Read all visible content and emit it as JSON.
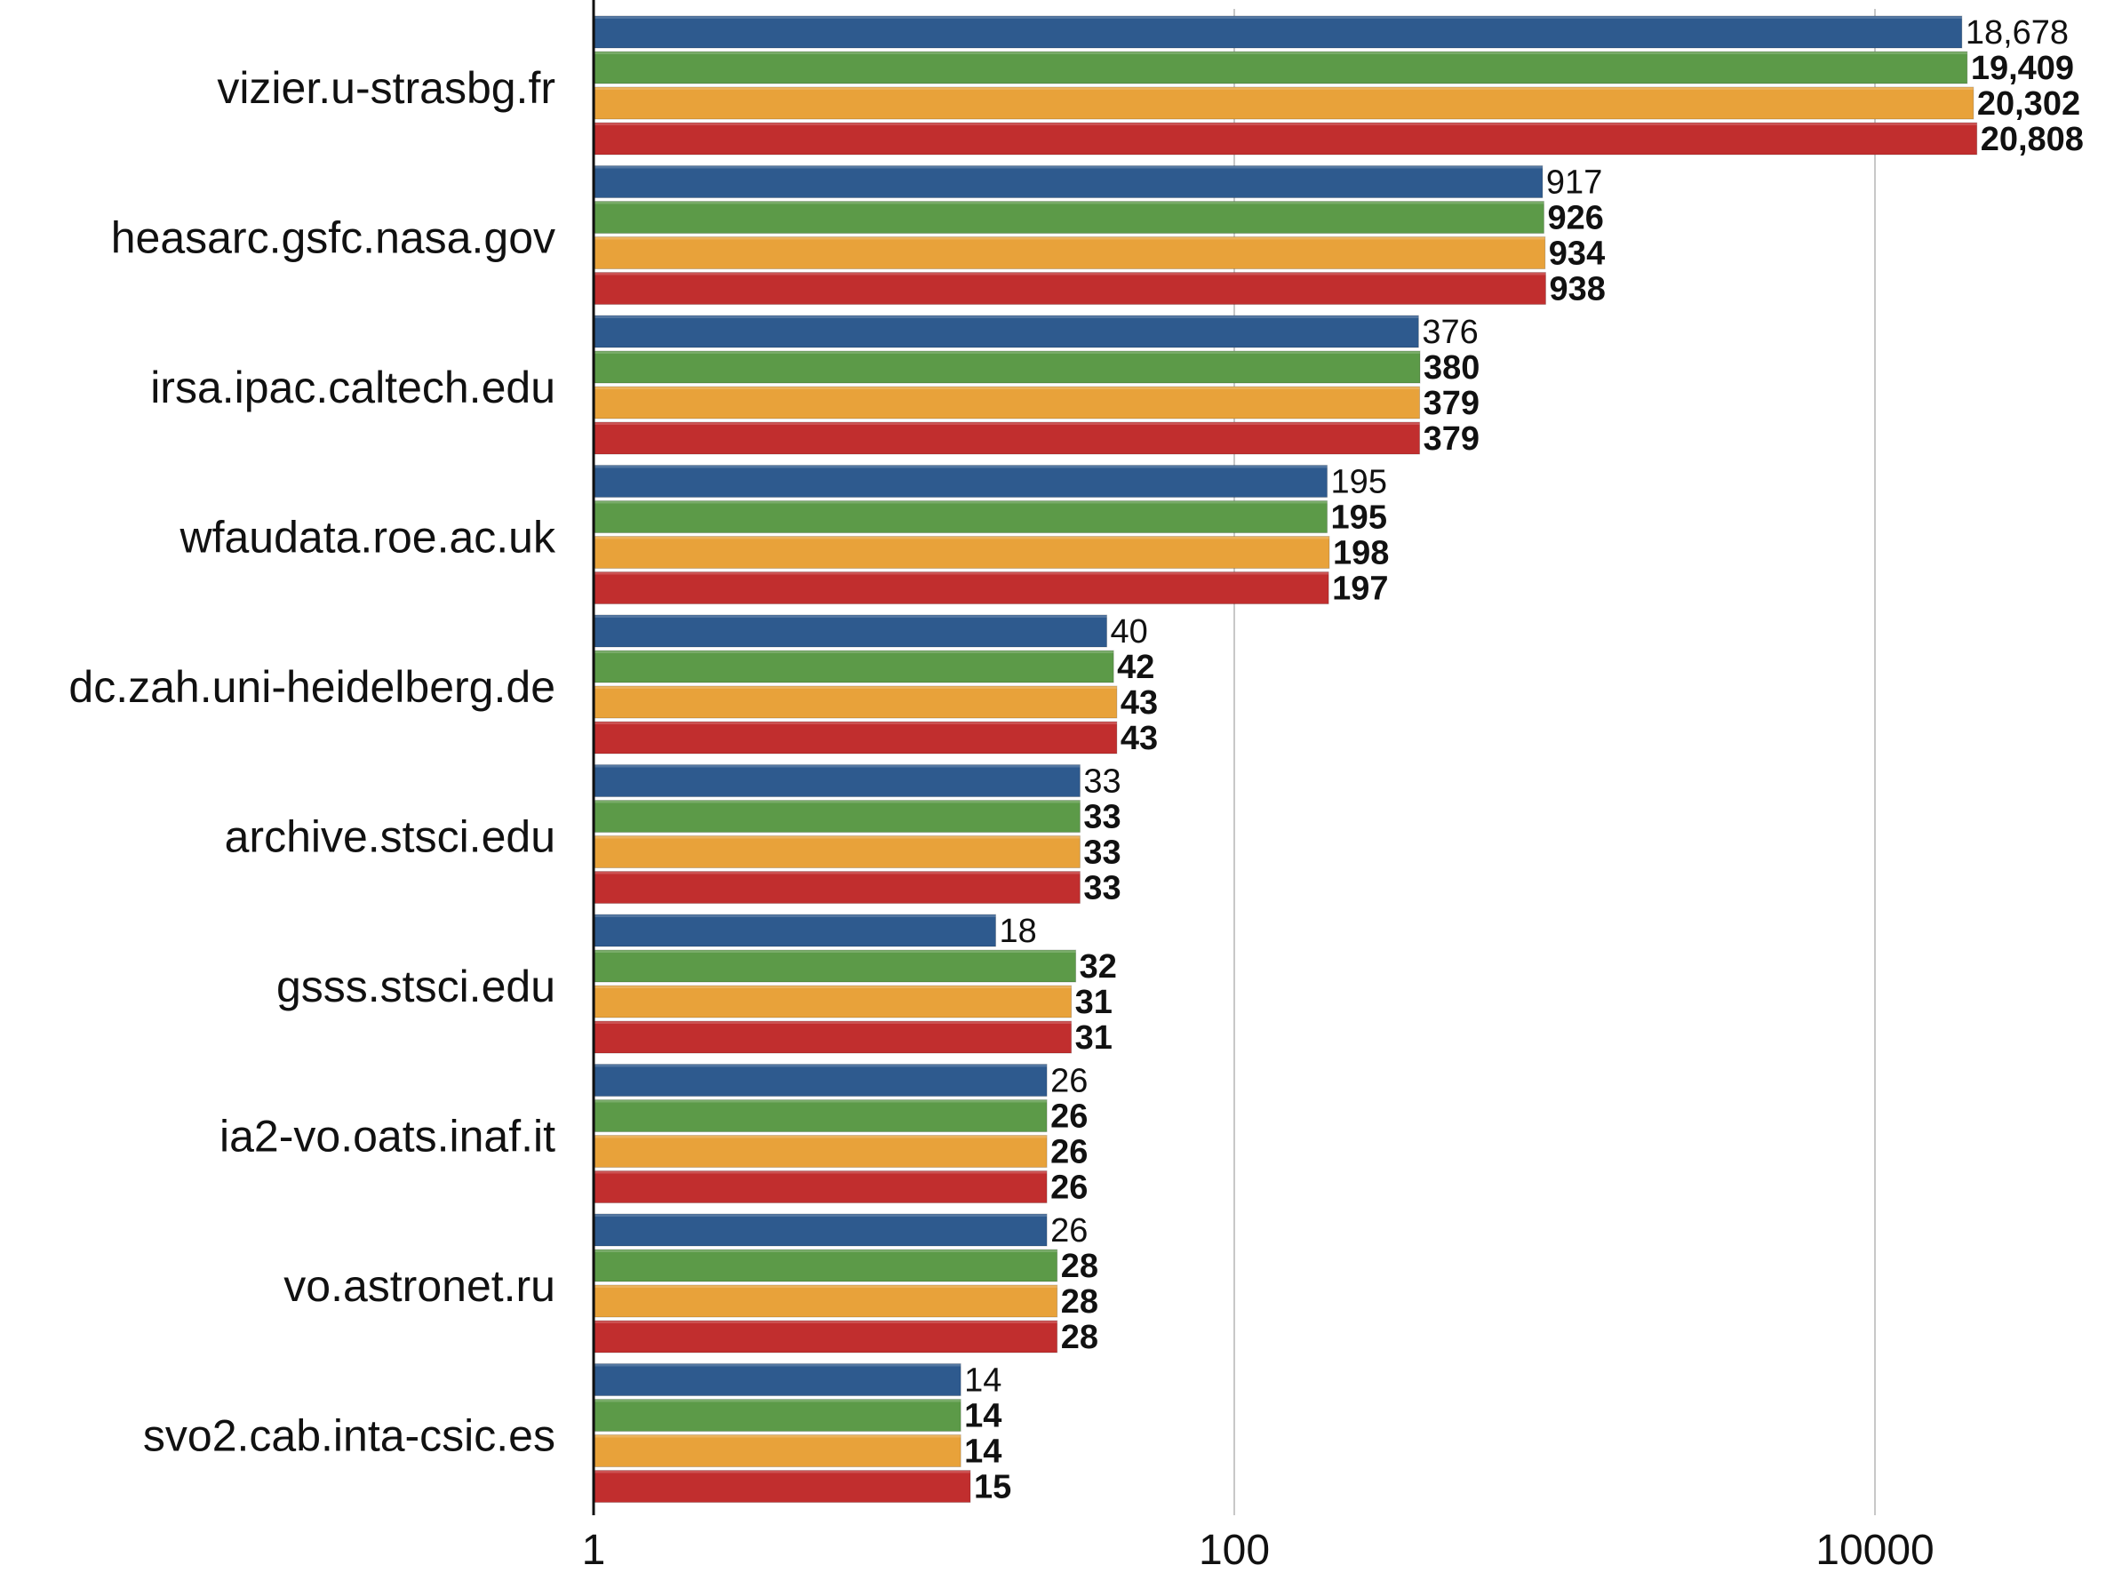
{
  "chart_data": {
    "type": "bar",
    "orientation": "horizontal",
    "x_scale": "log",
    "xlim": [
      1,
      40000
    ],
    "xticks": [
      1,
      100,
      10000
    ],
    "xtick_labels": [
      "1",
      "100",
      "10000"
    ],
    "grid": "vertical lines at ticks",
    "legend": "none",
    "categories": [
      "vizier.u-strasbg.fr",
      "heasarc.gsfc.nasa.gov",
      "irsa.ipac.caltech.edu",
      "wfaudata.roe.ac.uk",
      "dc.zah.uni-heidelberg.de",
      "archive.stsci.edu",
      "gsss.stsci.edu",
      "ia2-vo.oats.inaf.it",
      "vo.astronet.ru",
      "svo2.cab.inta-csic.es"
    ],
    "series": [
      {
        "color": "#2E5A8E",
        "label_weight": "normal",
        "values": [
          18678,
          917,
          376,
          195,
          40,
          33,
          18,
          26,
          26,
          14
        ],
        "labels": [
          "18,678",
          "917",
          "376",
          "195",
          "40",
          "33",
          "18",
          "26",
          "26",
          "14"
        ]
      },
      {
        "color": "#5C9A48",
        "label_weight": "medium",
        "values": [
          19409,
          926,
          380,
          195,
          42,
          33,
          32,
          26,
          28,
          14
        ],
        "labels": [
          "19,409",
          "926",
          "380",
          "195",
          "42",
          "33",
          "32",
          "26",
          "28",
          "14"
        ]
      },
      {
        "color": "#E8A23A",
        "label_weight": "medium",
        "values": [
          20302,
          934,
          379,
          198,
          43,
          33,
          31,
          26,
          28,
          14
        ],
        "labels": [
          "20,302",
          "934",
          "379",
          "198",
          "43",
          "33",
          "31",
          "26",
          "28",
          "14"
        ]
      },
      {
        "color": "#C12E2E",
        "label_weight": "bold",
        "values": [
          20808,
          938,
          379,
          197,
          43,
          33,
          31,
          26,
          28,
          15
        ],
        "labels": [
          "20,808",
          "938",
          "379",
          "197",
          "43",
          "33",
          "31",
          "26",
          "28",
          "15"
        ]
      }
    ]
  }
}
